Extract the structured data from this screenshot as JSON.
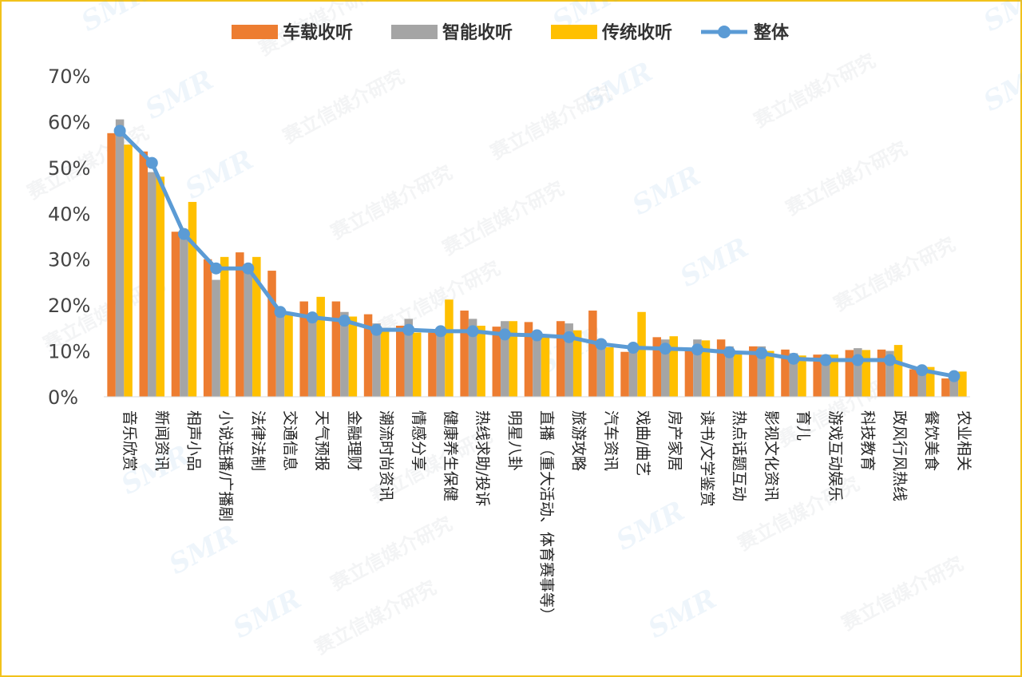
{
  "chart_data": {
    "type": "bar",
    "title": "",
    "xlabel": "",
    "ylabel": "",
    "ylim": [
      0,
      70
    ],
    "yticks": [
      "0%",
      "10%",
      "20%",
      "30%",
      "40%",
      "50%",
      "60%",
      "70%"
    ],
    "grid": false,
    "legend_position": "top",
    "categories": [
      "音乐欣赏",
      "新闻资讯",
      "相声小品",
      "小说连播/广播剧",
      "法律法制",
      "交通信息",
      "天气预报",
      "金融理财",
      "潮流时尚资讯",
      "情感分享",
      "健康养生保健",
      "热线求助/投诉",
      "明星八卦",
      "直播（重大活动、体育赛事等）",
      "旅游攻略",
      "汽车资讯",
      "戏曲/曲艺",
      "房产家居",
      "读书/文学鉴赏",
      "热点话题互动",
      "影视文化资讯",
      "育儿",
      "游戏互动娱乐",
      "科技教育",
      "政风行风热线",
      "餐饮美食",
      "农业相关"
    ],
    "series": [
      {
        "name": "车载收听",
        "kind": "bar",
        "color": "#ed7d31",
        "values": [
          57.5,
          53.5,
          36,
          30,
          31.5,
          27.5,
          20.8,
          20.8,
          18,
          15.5,
          14,
          18.8,
          15.3,
          16.3,
          16.5,
          18.8,
          9.8,
          13,
          10.3,
          12.5,
          11,
          10.3,
          9.2,
          10.2,
          10.3,
          6,
          4
        ]
      },
      {
        "name": "智能收听",
        "kind": "bar",
        "color": "#a5a5a5",
        "values": [
          60.5,
          49,
          36.5,
          25.5,
          28,
          19,
          18,
          18.5,
          16,
          17,
          14,
          17,
          16.5,
          13.5,
          16,
          11.5,
          10.5,
          12.5,
          12.5,
          11,
          11,
          9.5,
          9.2,
          10.6,
          10,
          6,
          5
        ]
      },
      {
        "name": "传统收听",
        "kind": "bar",
        "color": "#ffc000",
        "values": [
          55,
          48,
          42.5,
          30.5,
          30.5,
          18,
          21.8,
          17.5,
          15,
          14,
          21.2,
          15.5,
          16.5,
          13.5,
          14.5,
          10.8,
          18.5,
          13.2,
          12.3,
          10,
          10,
          9,
          9.2,
          10.2,
          11.3,
          6.5,
          5.5
        ]
      },
      {
        "name": "整体",
        "kind": "line",
        "color": "#5b9bd5",
        "values": [
          58,
          51,
          35.5,
          28,
          28,
          18.5,
          17.3,
          16.6,
          14.6,
          14.6,
          14.3,
          14.3,
          13.6,
          13.4,
          13,
          11.5,
          10.7,
          10.5,
          10.3,
          9.7,
          9.5,
          8.3,
          8,
          8,
          8,
          5.8,
          4.5
        ]
      }
    ]
  },
  "watermark": {
    "logo_text": "SMR",
    "text": "赛立信媒介研究"
  }
}
